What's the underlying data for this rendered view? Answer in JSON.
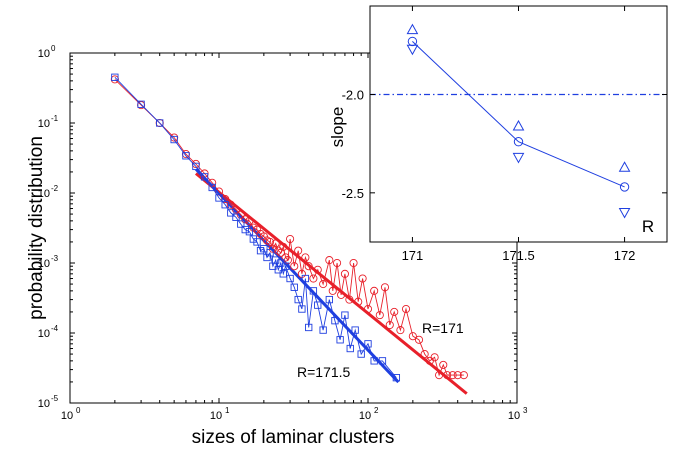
{
  "chart_data": [
    {
      "type": "line",
      "title": "",
      "xlabel": "sizes of laminar clusters",
      "ylabel": "probability distribution",
      "xscale": "log",
      "yscale": "log",
      "xlim": [
        1,
        1000
      ],
      "ylim": [
        1e-05,
        1
      ],
      "grid": false,
      "xticks": [
        {
          "value": 1,
          "base": "10",
          "exp": "0"
        },
        {
          "value": 10,
          "base": "10",
          "exp": "1"
        },
        {
          "value": 100,
          "base": "10",
          "exp": "2"
        },
        {
          "value": 1000,
          "base": "10",
          "exp": "3"
        }
      ],
      "yticks": [
        {
          "value": 1,
          "base": "10",
          "exp": "0"
        },
        {
          "value": 0.1,
          "base": "10",
          "exp": "-1"
        },
        {
          "value": 0.01,
          "base": "10",
          "exp": "-2"
        },
        {
          "value": 0.001,
          "base": "10",
          "exp": "-3"
        },
        {
          "value": 0.0001,
          "base": "10",
          "exp": "-4"
        },
        {
          "value": 1e-05,
          "base": "10",
          "exp": "-5"
        }
      ],
      "series": [
        {
          "name": "R=171",
          "color": "#e8202a",
          "marker": "circle",
          "points": [
            [
              2,
              0.42
            ],
            [
              3,
              0.18
            ],
            [
              4,
              0.1
            ],
            [
              5,
              0.062
            ],
            [
              6,
              0.036
            ],
            [
              7,
              0.026
            ],
            [
              8,
              0.019
            ],
            [
              9,
              0.014
            ],
            [
              10,
              0.0105
            ],
            [
              11,
              0.0082
            ],
            [
              12,
              0.0068
            ],
            [
              13,
              0.0058
            ],
            [
              14,
              0.0049
            ],
            [
              15,
              0.0042
            ],
            [
              16,
              0.004
            ],
            [
              17,
              0.0032
            ],
            [
              18,
              0.003
            ],
            [
              19,
              0.0026
            ],
            [
              20,
              0.0024
            ],
            [
              21,
              0.0021
            ],
            [
              22,
              0.002
            ],
            [
              23,
              0.0016
            ],
            [
              24,
              0.0019
            ],
            [
              25,
              0.0015
            ],
            [
              26,
              0.0014
            ],
            [
              27,
              0.0017
            ],
            [
              28,
              0.0012
            ],
            [
              29,
              0.0011
            ],
            [
              30,
              0.0022
            ],
            [
              32,
              0.0009
            ],
            [
              34,
              0.0015
            ],
            [
              36,
              0.0007
            ],
            [
              38,
              0.0012
            ],
            [
              40,
              0.0009
            ],
            [
              43,
              0.0006
            ],
            [
              46,
              0.0008
            ],
            [
              50,
              0.0005
            ],
            [
              55,
              0.0011
            ],
            [
              58,
              0.0004
            ],
            [
              62,
              0.001
            ],
            [
              66,
              0.00035
            ],
            [
              70,
              0.0007
            ],
            [
              75,
              0.0003
            ],
            [
              80,
              0.001
            ],
            [
              86,
              0.00028
            ],
            [
              92,
              0.0006
            ],
            [
              100,
              0.00022
            ],
            [
              110,
              0.0004
            ],
            [
              120,
              0.00018
            ],
            [
              130,
              0.00045
            ],
            [
              140,
              0.00013
            ],
            [
              150,
              0.0002
            ],
            [
              165,
              0.00011
            ],
            [
              180,
              0.00022
            ],
            [
              200,
              9e-05
            ],
            [
              220,
              8e-05
            ],
            [
              240,
              5e-05
            ],
            [
              260,
              4e-05
            ],
            [
              280,
              4.5e-05
            ],
            [
              300,
              2.5e-05
            ],
            [
              320,
              3.5e-05
            ],
            [
              340,
              2.5e-05
            ],
            [
              370,
              2.5e-05
            ],
            [
              400,
              2.5e-05
            ],
            [
              440,
              2.5e-05
            ]
          ]
        },
        {
          "name": "R=171.5",
          "color": "#1f3fe0",
          "marker": "square",
          "points": [
            [
              2,
              0.45
            ],
            [
              3,
              0.185
            ],
            [
              4,
              0.1
            ],
            [
              5,
              0.058
            ],
            [
              6,
              0.034
            ],
            [
              7,
              0.024
            ],
            [
              8,
              0.017
            ],
            [
              9,
              0.012
            ],
            [
              10,
              0.0085
            ],
            [
              11,
              0.0068
            ],
            [
              12,
              0.0052
            ],
            [
              13,
              0.0045
            ],
            [
              14,
              0.0036
            ],
            [
              15,
              0.003
            ],
            [
              16,
              0.0028
            ],
            [
              17,
              0.0022
            ],
            [
              18,
              0.002
            ],
            [
              19,
              0.0015
            ],
            [
              20,
              0.0016
            ],
            [
              21,
              0.0012
            ],
            [
              22,
              0.0014
            ],
            [
              23,
              0.0009
            ],
            [
              24,
              0.0011
            ],
            [
              25,
              0.0008
            ],
            [
              26,
              0.001
            ],
            [
              27,
              0.0007
            ],
            [
              28,
              0.0009
            ],
            [
              30,
              0.0006
            ],
            [
              32,
              0.00045
            ],
            [
              34,
              0.0003
            ],
            [
              36,
              0.00022
            ],
            [
              38,
              0.0006
            ],
            [
              40,
              0.00012
            ],
            [
              43,
              0.0004
            ],
            [
              46,
              0.00025
            ],
            [
              50,
              0.00011
            ],
            [
              55,
              0.0003
            ],
            [
              60,
              0.00015
            ],
            [
              65,
              8e-05
            ],
            [
              70,
              0.00018
            ],
            [
              76,
              6e-05
            ],
            [
              82,
              0.00011
            ],
            [
              90,
              5e-05
            ],
            [
              100,
              7e-05
            ],
            [
              110,
              4e-05
            ],
            [
              125,
              4e-05
            ],
            [
              155,
              2.3e-05
            ]
          ]
        }
      ],
      "fits": [
        {
          "name": "R=171 fit",
          "color": "#e8202a",
          "slope": -1.73,
          "x": [
            7,
            460
          ]
        },
        {
          "name": "R=171.5 fit",
          "color": "#1f3fe0",
          "slope": -2.24,
          "x": [
            7,
            160
          ]
        }
      ],
      "annotations": [
        "R=171",
        "R=171.5"
      ]
    },
    {
      "type": "line",
      "title": "",
      "xlabel": "R",
      "ylabel": "slope",
      "xlim": [
        170.8,
        172.2
      ],
      "ylim": [
        -2.75,
        -1.55
      ],
      "xticks": [
        "171",
        "171.5",
        "172"
      ],
      "yticks": [
        "-2.0",
        "-2.5"
      ],
      "reference_line": {
        "y": -2.0,
        "style": "dash-dot",
        "color": "#1f3fe0"
      },
      "series": [
        {
          "name": "",
          "marker": "circle",
          "color": "#1f3fe0",
          "connected": true,
          "x": [
            171,
            171.5,
            172
          ],
          "y": [
            -1.73,
            -2.24,
            -2.47
          ]
        },
        {
          "name": "",
          "marker": "triangle-up",
          "color": "#1f3fe0",
          "connected": false,
          "x": [
            171,
            171.5,
            172
          ],
          "y": [
            -1.67,
            -2.16,
            -2.37
          ]
        },
        {
          "name": "",
          "marker": "triangle-down",
          "color": "#1f3fe0",
          "connected": false,
          "x": [
            171,
            171.5,
            172
          ],
          "y": [
            -1.77,
            -2.32,
            -2.6
          ]
        }
      ]
    }
  ]
}
